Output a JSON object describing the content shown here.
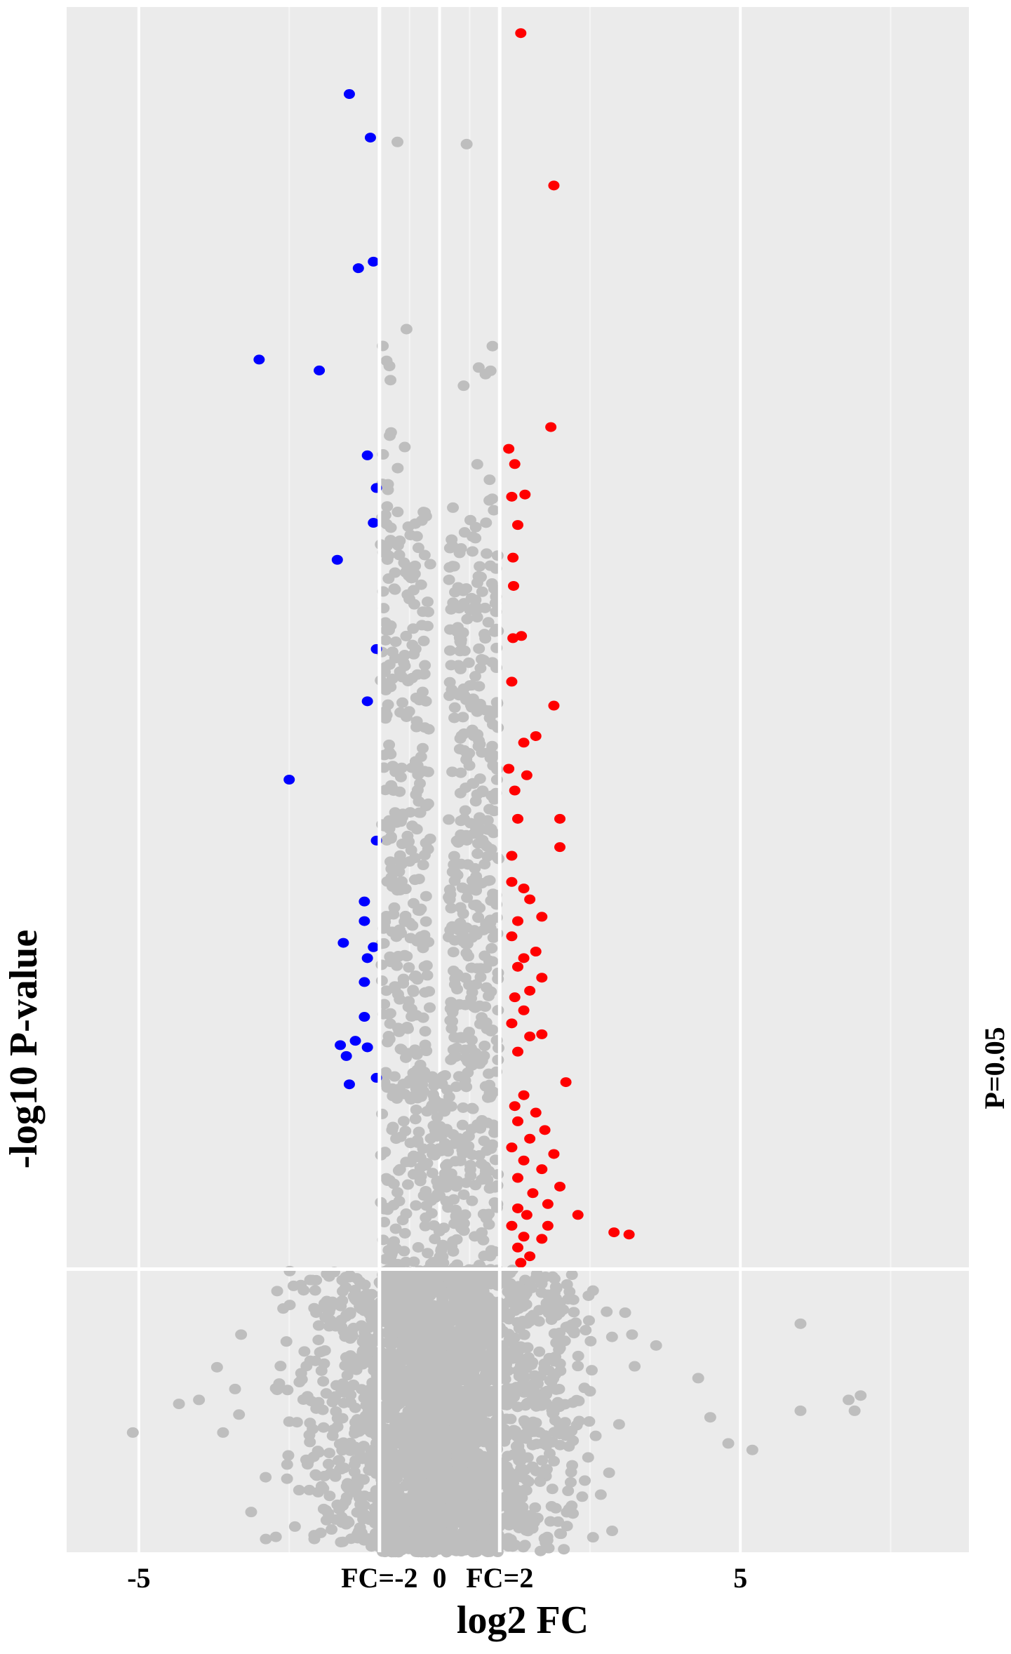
{
  "chart_data": {
    "type": "scatter",
    "title": "",
    "xlabel": "log2 FC",
    "ylabel": "-log10  P-value",
    "xlim": [
      -6.2,
      8.8
    ],
    "ylim": [
      0,
      7.1
    ],
    "x_ticks": [
      {
        "value": -5,
        "label": "-5"
      },
      {
        "value": -1,
        "label": "FC=-2"
      },
      {
        "value": 0,
        "label": "0"
      },
      {
        "value": 1,
        "label": "FC=2"
      },
      {
        "value": 5,
        "label": "5"
      }
    ],
    "minor_x_gridlines": [
      -7.5,
      -2.5,
      -0.5,
      0.5,
      2.5,
      7.5
    ],
    "threshold_lines": {
      "fc_left": -1,
      "fc_right": 1,
      "p_value": 1.301,
      "p_label": "P=0.05"
    },
    "grid": true,
    "background": "#ebebeb",
    "colors": {
      "up": "#ff0000",
      "down": "#0000ff",
      "not_significant": "#bebebe"
    },
    "series": [
      {
        "key": "up",
        "points": [
          [
            1.35,
            6.98
          ],
          [
            1.9,
            6.28
          ],
          [
            1.85,
            5.17
          ],
          [
            1.15,
            5.07
          ],
          [
            1.25,
            5.0
          ],
          [
            1.42,
            4.86
          ],
          [
            1.2,
            4.85
          ],
          [
            1.3,
            4.72
          ],
          [
            1.22,
            4.57
          ],
          [
            1.23,
            4.44
          ],
          [
            1.22,
            4.2
          ],
          [
            1.36,
            4.21
          ],
          [
            1.2,
            4.0
          ],
          [
            1.9,
            3.89
          ],
          [
            1.6,
            3.75
          ],
          [
            1.4,
            3.72
          ],
          [
            1.15,
            3.6
          ],
          [
            1.45,
            3.57
          ],
          [
            1.25,
            3.5
          ],
          [
            2.0,
            3.37
          ],
          [
            2.0,
            3.24
          ],
          [
            1.3,
            3.37
          ],
          [
            1.2,
            3.2
          ],
          [
            1.2,
            3.08
          ],
          [
            1.4,
            3.05
          ],
          [
            1.5,
            3.0
          ],
          [
            1.7,
            2.92
          ],
          [
            1.3,
            2.9
          ],
          [
            1.2,
            2.83
          ],
          [
            1.6,
            2.76
          ],
          [
            1.4,
            2.73
          ],
          [
            1.3,
            2.69
          ],
          [
            1.7,
            2.64
          ],
          [
            1.5,
            2.58
          ],
          [
            1.25,
            2.55
          ],
          [
            1.4,
            2.49
          ],
          [
            1.2,
            2.43
          ],
          [
            1.7,
            2.38
          ],
          [
            1.5,
            2.37
          ],
          [
            1.3,
            2.3
          ],
          [
            2.1,
            2.16
          ],
          [
            1.4,
            2.1
          ],
          [
            1.25,
            2.05
          ],
          [
            1.6,
            2.02
          ],
          [
            1.3,
            1.98
          ],
          [
            1.75,
            1.94
          ],
          [
            1.5,
            1.9
          ],
          [
            1.2,
            1.86
          ],
          [
            1.9,
            1.83
          ],
          [
            1.4,
            1.8
          ],
          [
            1.7,
            1.76
          ],
          [
            1.3,
            1.72
          ],
          [
            2.0,
            1.68
          ],
          [
            1.55,
            1.65
          ],
          [
            1.8,
            1.6
          ],
          [
            1.3,
            1.58
          ],
          [
            1.45,
            1.55
          ],
          [
            1.2,
            1.5
          ],
          [
            1.4,
            1.45
          ],
          [
            2.3,
            1.55
          ],
          [
            2.9,
            1.47
          ],
          [
            3.15,
            1.46
          ],
          [
            1.7,
            1.44
          ],
          [
            1.3,
            1.4
          ],
          [
            1.5,
            1.36
          ],
          [
            1.35,
            1.33
          ],
          [
            1.8,
            1.5
          ]
        ]
      },
      {
        "key": "down",
        "points": [
          [
            -1.5,
            6.7
          ],
          [
            -1.15,
            6.5
          ],
          [
            -1.35,
            5.9
          ],
          [
            -1.1,
            5.93
          ],
          [
            -3.0,
            5.48
          ],
          [
            -2.0,
            5.43
          ],
          [
            -1.2,
            5.04
          ],
          [
            -1.05,
            4.89
          ],
          [
            -1.1,
            4.73
          ],
          [
            -1.7,
            4.56
          ],
          [
            -1.05,
            4.15
          ],
          [
            -1.2,
            3.91
          ],
          [
            -2.5,
            3.55
          ],
          [
            -1.05,
            3.27
          ],
          [
            -1.25,
            2.99
          ],
          [
            -1.25,
            2.9
          ],
          [
            -1.6,
            2.8
          ],
          [
            -1.1,
            2.78
          ],
          [
            -1.2,
            2.73
          ],
          [
            -1.25,
            2.62
          ],
          [
            -1.25,
            2.46
          ],
          [
            -1.4,
            2.35
          ],
          [
            -1.65,
            2.33
          ],
          [
            -1.2,
            2.32
          ],
          [
            -1.55,
            2.28
          ],
          [
            -1.05,
            2.18
          ],
          [
            -1.5,
            2.15
          ]
        ]
      }
    ]
  }
}
